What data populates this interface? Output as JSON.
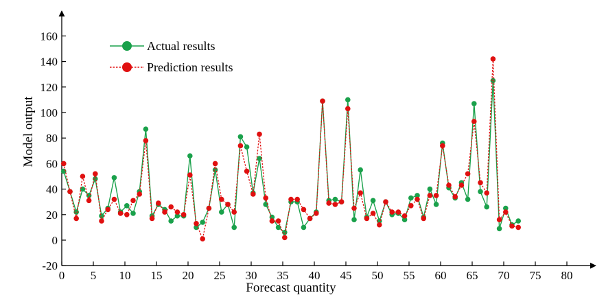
{
  "chart_data": {
    "type": "line",
    "title": "",
    "xlabel": "Forecast quantity",
    "ylabel": "Model output",
    "xlim": [
      0,
      85
    ],
    "ylim": [
      -20,
      180
    ],
    "x_ticks": [
      0,
      5,
      10,
      15,
      20,
      25,
      30,
      35,
      40,
      45,
      50,
      55,
      60,
      65,
      70,
      75,
      80
    ],
    "y_ticks": [
      -20,
      0,
      20,
      40,
      60,
      80,
      100,
      120,
      140,
      160
    ],
    "grid": false,
    "legend_position": "top-left",
    "series": [
      {
        "name": "Actual results",
        "color": "#1aa14b",
        "style": "solid",
        "values": [
          54,
          38,
          22,
          40,
          35,
          48,
          19,
          25,
          49,
          22,
          27,
          21,
          38,
          87,
          19,
          28,
          24,
          15,
          19,
          19,
          66,
          10,
          14,
          25,
          55,
          22,
          28,
          10,
          81,
          73,
          37,
          64,
          28,
          18,
          10,
          6,
          30,
          30,
          10,
          17,
          22,
          109,
          31,
          32,
          30,
          110,
          16,
          55,
          18,
          31,
          15,
          30,
          20,
          21,
          16,
          33,
          35,
          18,
          40,
          28,
          76,
          41,
          33,
          45,
          32,
          107,
          38,
          26,
          125,
          9,
          25,
          12,
          15
        ]
      },
      {
        "name": "Prediction results",
        "color": "#e01010",
        "style": "dotted",
        "values": [
          60,
          38,
          17,
          50,
          31,
          52,
          15,
          24,
          32,
          21,
          20,
          31,
          36,
          78,
          17,
          29,
          22,
          26,
          22,
          20,
          51,
          13,
          1,
          25,
          60,
          32,
          28,
          22,
          74,
          54,
          36,
          83,
          33,
          15,
          15,
          2,
          32,
          32,
          24,
          17,
          21,
          109,
          29,
          28,
          30,
          103,
          25,
          37,
          17,
          21,
          12,
          30,
          22,
          22,
          19,
          27,
          32,
          17,
          35,
          35,
          74,
          43,
          34,
          43,
          52,
          93,
          45,
          37,
          142,
          16,
          22,
          11,
          10
        ]
      }
    ]
  }
}
